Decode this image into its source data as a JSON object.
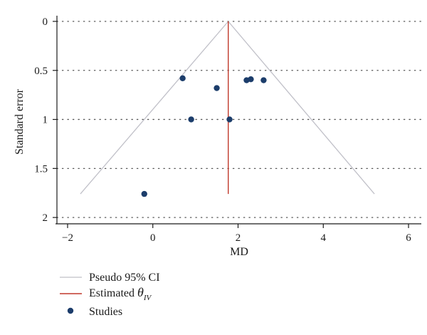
{
  "chart_data": {
    "type": "scatter",
    "title": "",
    "xlabel": "MD",
    "ylabel": "Standard error",
    "xlim": [
      -2.25,
      6.3
    ],
    "ylim": [
      0,
      2.05
    ],
    "y_inverted": true,
    "x_ticks": [
      -2,
      0,
      2,
      4,
      6
    ],
    "x_tick_labels": [
      "−2",
      "0",
      "2",
      "4",
      "6"
    ],
    "y_ticks": [
      0,
      0.5,
      1,
      1.5,
      2
    ],
    "y_tick_labels": [
      "0",
      "0.5",
      "1",
      "1.5",
      "2"
    ],
    "grid": "horizontal dotted",
    "legend_placement": "bottom-left",
    "colors": {
      "ci": "#c0c0c8",
      "estimate": "#c0392b",
      "studies": "#1c3d6b",
      "grid": "#555555",
      "axis": "#1a1a1a"
    },
    "estimate": 1.77,
    "ci_lines": {
      "apex": [
        1.77,
        0
      ],
      "left_base": [
        -1.7,
        1.76
      ],
      "right_base": [
        5.2,
        1.76
      ]
    },
    "estimate_line": {
      "x": 1.77,
      "y_from": 0,
      "y_to": 1.76
    },
    "series": [
      {
        "name": "Studies",
        "points": [
          {
            "x": 0.7,
            "y": 0.58
          },
          {
            "x": 1.5,
            "y": 0.68
          },
          {
            "x": 2.2,
            "y": 0.6
          },
          {
            "x": 2.3,
            "y": 0.59
          },
          {
            "x": 2.6,
            "y": 0.6
          },
          {
            "x": 0.9,
            "y": 1.0
          },
          {
            "x": 1.8,
            "y": 1.0
          },
          {
            "x": -0.2,
            "y": 1.76
          }
        ]
      }
    ],
    "legend": [
      {
        "key": "ci",
        "label": "Pseudo 95% CI"
      },
      {
        "key": "estimate",
        "label_main": "Estimated ",
        "label_symbol": "θ",
        "label_sub": "IV"
      },
      {
        "key": "studies",
        "label": "Studies"
      }
    ]
  }
}
